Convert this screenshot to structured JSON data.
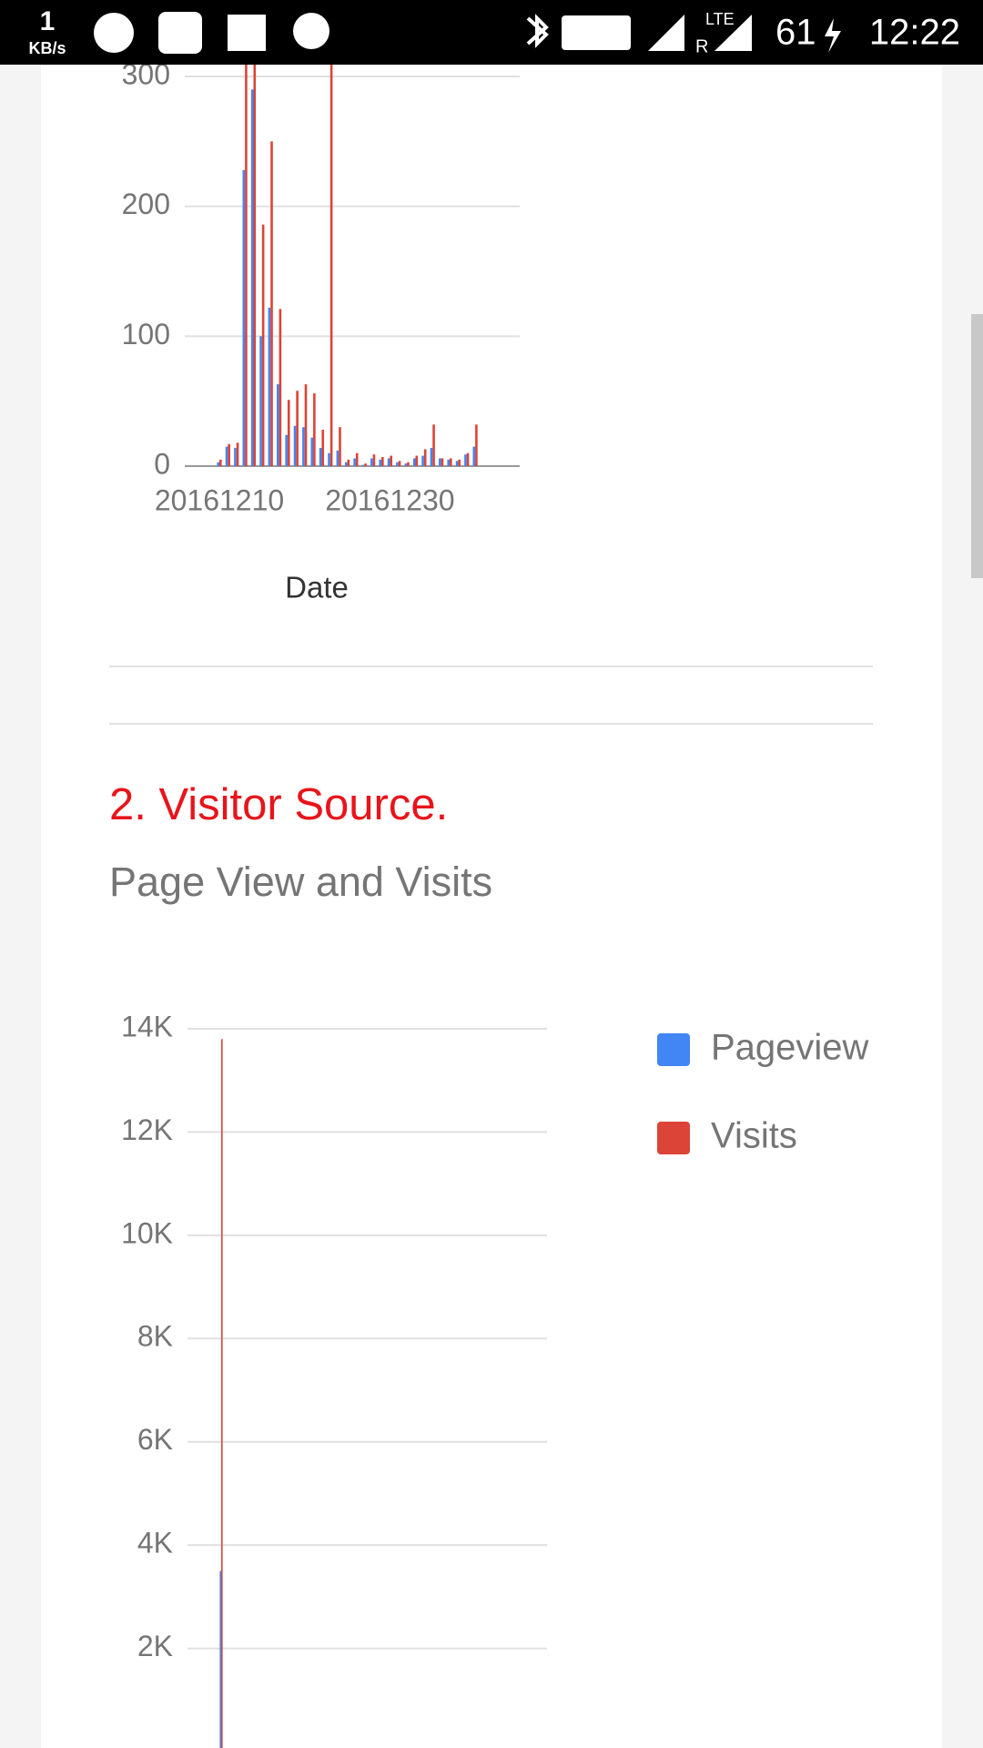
{
  "status_bar": {
    "speed": "1",
    "speed_unit": "KB/s",
    "network": "LTE",
    "roaming": "R",
    "battery": "61",
    "time": "12:22"
  },
  "section_heading": "2. Visitor Source.",
  "chart_data": [
    {
      "type": "bar",
      "x_label": "Date",
      "categories": [
        "20161210",
        null,
        null,
        null,
        null,
        null,
        null,
        null,
        null,
        null,
        null,
        null,
        null,
        null,
        null,
        null,
        null,
        null,
        null,
        null,
        "20161230",
        null,
        null,
        null,
        null,
        null,
        null,
        null,
        null,
        null,
        null
      ],
      "series": [
        {
          "name": "Pageview",
          "color": "#4285f4",
          "values": [
            3,
            15,
            14,
            228,
            290,
            100,
            122,
            63,
            24,
            31,
            30,
            22,
            14,
            10,
            12,
            3,
            6,
            1,
            6,
            5,
            6,
            3,
            2,
            6,
            8,
            14,
            6,
            5,
            4,
            9,
            15
          ]
        },
        {
          "name": "Visits",
          "color": "#db4437",
          "values": [
            5,
            17,
            18,
            330,
            330,
            186,
            250,
            121,
            51,
            58,
            63,
            56,
            28,
            320,
            30,
            5,
            10,
            2,
            9,
            7,
            8,
            4,
            3,
            8,
            13,
            32,
            6,
            6,
            5,
            10,
            32
          ]
        }
      ],
      "ylim": [
        0,
        300
      ],
      "yticks": [
        0,
        100,
        200,
        300
      ],
      "grid": true
    },
    {
      "type": "bar",
      "title": "Page View and Visits",
      "categories": [
        null
      ],
      "series": [
        {
          "name": "Pageview",
          "color": "#4285f4",
          "values": [
            3500
          ]
        },
        {
          "name": "Visits",
          "color": "#db4437",
          "values": [
            13800
          ]
        }
      ],
      "ylim": [
        0,
        14000
      ],
      "yticks": [
        {
          "value": 2000,
          "label": "2K"
        },
        {
          "value": 4000,
          "label": "4K"
        },
        {
          "value": 6000,
          "label": "6K"
        },
        {
          "value": 8000,
          "label": "8K"
        },
        {
          "value": 10000,
          "label": "10K"
        },
        {
          "value": 12000,
          "label": "12K"
        },
        {
          "value": 14000,
          "label": "14K"
        }
      ],
      "grid": true,
      "legend": "right"
    }
  ]
}
